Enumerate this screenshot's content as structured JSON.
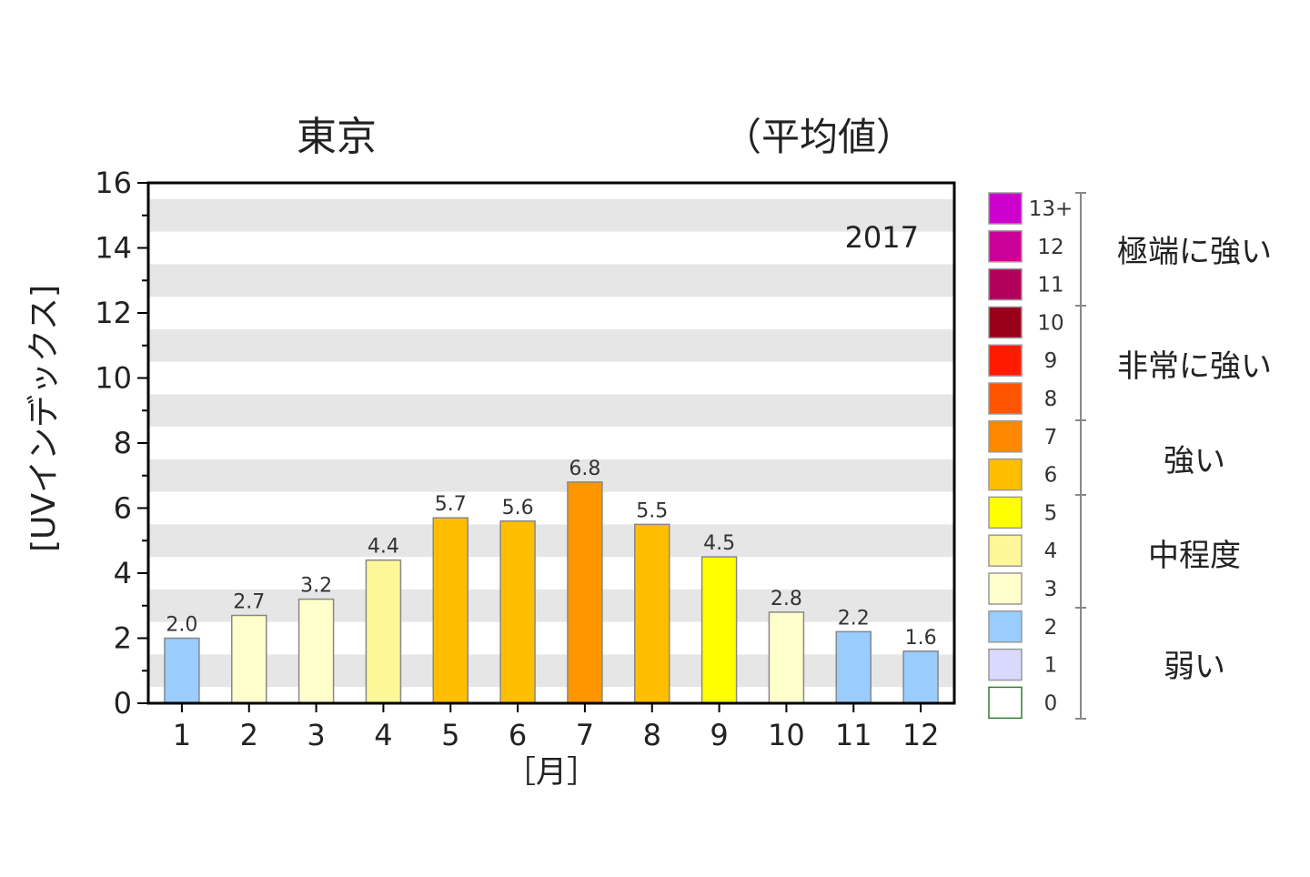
{
  "chart_data": {
    "type": "bar",
    "title": "東京",
    "subtitle": "（平均値）",
    "year_label": "2017",
    "xlabel": "［月］",
    "ylabel": "[UVインデックス]",
    "ylim": [
      0,
      16
    ],
    "yticks": [
      "0",
      "2",
      "4",
      "6",
      "8",
      "10",
      "12",
      "14",
      "16"
    ],
    "categories": [
      "1",
      "2",
      "3",
      "4",
      "5",
      "6",
      "7",
      "8",
      "9",
      "10",
      "11",
      "12"
    ],
    "values": [
      2.0,
      2.7,
      3.2,
      4.4,
      5.7,
      5.6,
      6.8,
      5.5,
      4.5,
      2.8,
      2.2,
      1.6
    ],
    "value_labels": [
      "2.0",
      "2.7",
      "3.2",
      "4.4",
      "5.7",
      "5.6",
      "6.8",
      "5.5",
      "4.5",
      "2.8",
      "2.2",
      "1.6"
    ],
    "bar_colors": [
      "#99ccff",
      "#ffffcc",
      "#ffffcc",
      "#fff599",
      "#ffbf00",
      "#ffbf00",
      "#ff9600",
      "#ffbf00",
      "#ffff00",
      "#ffffcc",
      "#99ccff",
      "#99ccff"
    ],
    "grid": "alternating horizontal bands",
    "legend": {
      "placement": "right",
      "items": [
        {
          "label": "13+",
          "color": "#cc00cc"
        },
        {
          "label": "12",
          "color": "#cc0099"
        },
        {
          "label": "11",
          "color": "#b3005b"
        },
        {
          "label": "10",
          "color": "#99001a"
        },
        {
          "label": "9",
          "color": "#ff1a00"
        },
        {
          "label": "8",
          "color": "#ff5500"
        },
        {
          "label": "7",
          "color": "#ff8800"
        },
        {
          "label": "6",
          "color": "#ffbf00"
        },
        {
          "label": "5",
          "color": "#ffff00"
        },
        {
          "label": "4",
          "color": "#fff599"
        },
        {
          "label": "3",
          "color": "#ffffcc"
        },
        {
          "label": "2",
          "color": "#99ccff"
        },
        {
          "label": "1",
          "color": "#d9d9ff"
        },
        {
          "label": "0",
          "color": "#ffffff"
        }
      ],
      "categories": [
        "極端に強い",
        "非常に強い",
        "強い",
        "中程度",
        "弱い"
      ]
    }
  }
}
